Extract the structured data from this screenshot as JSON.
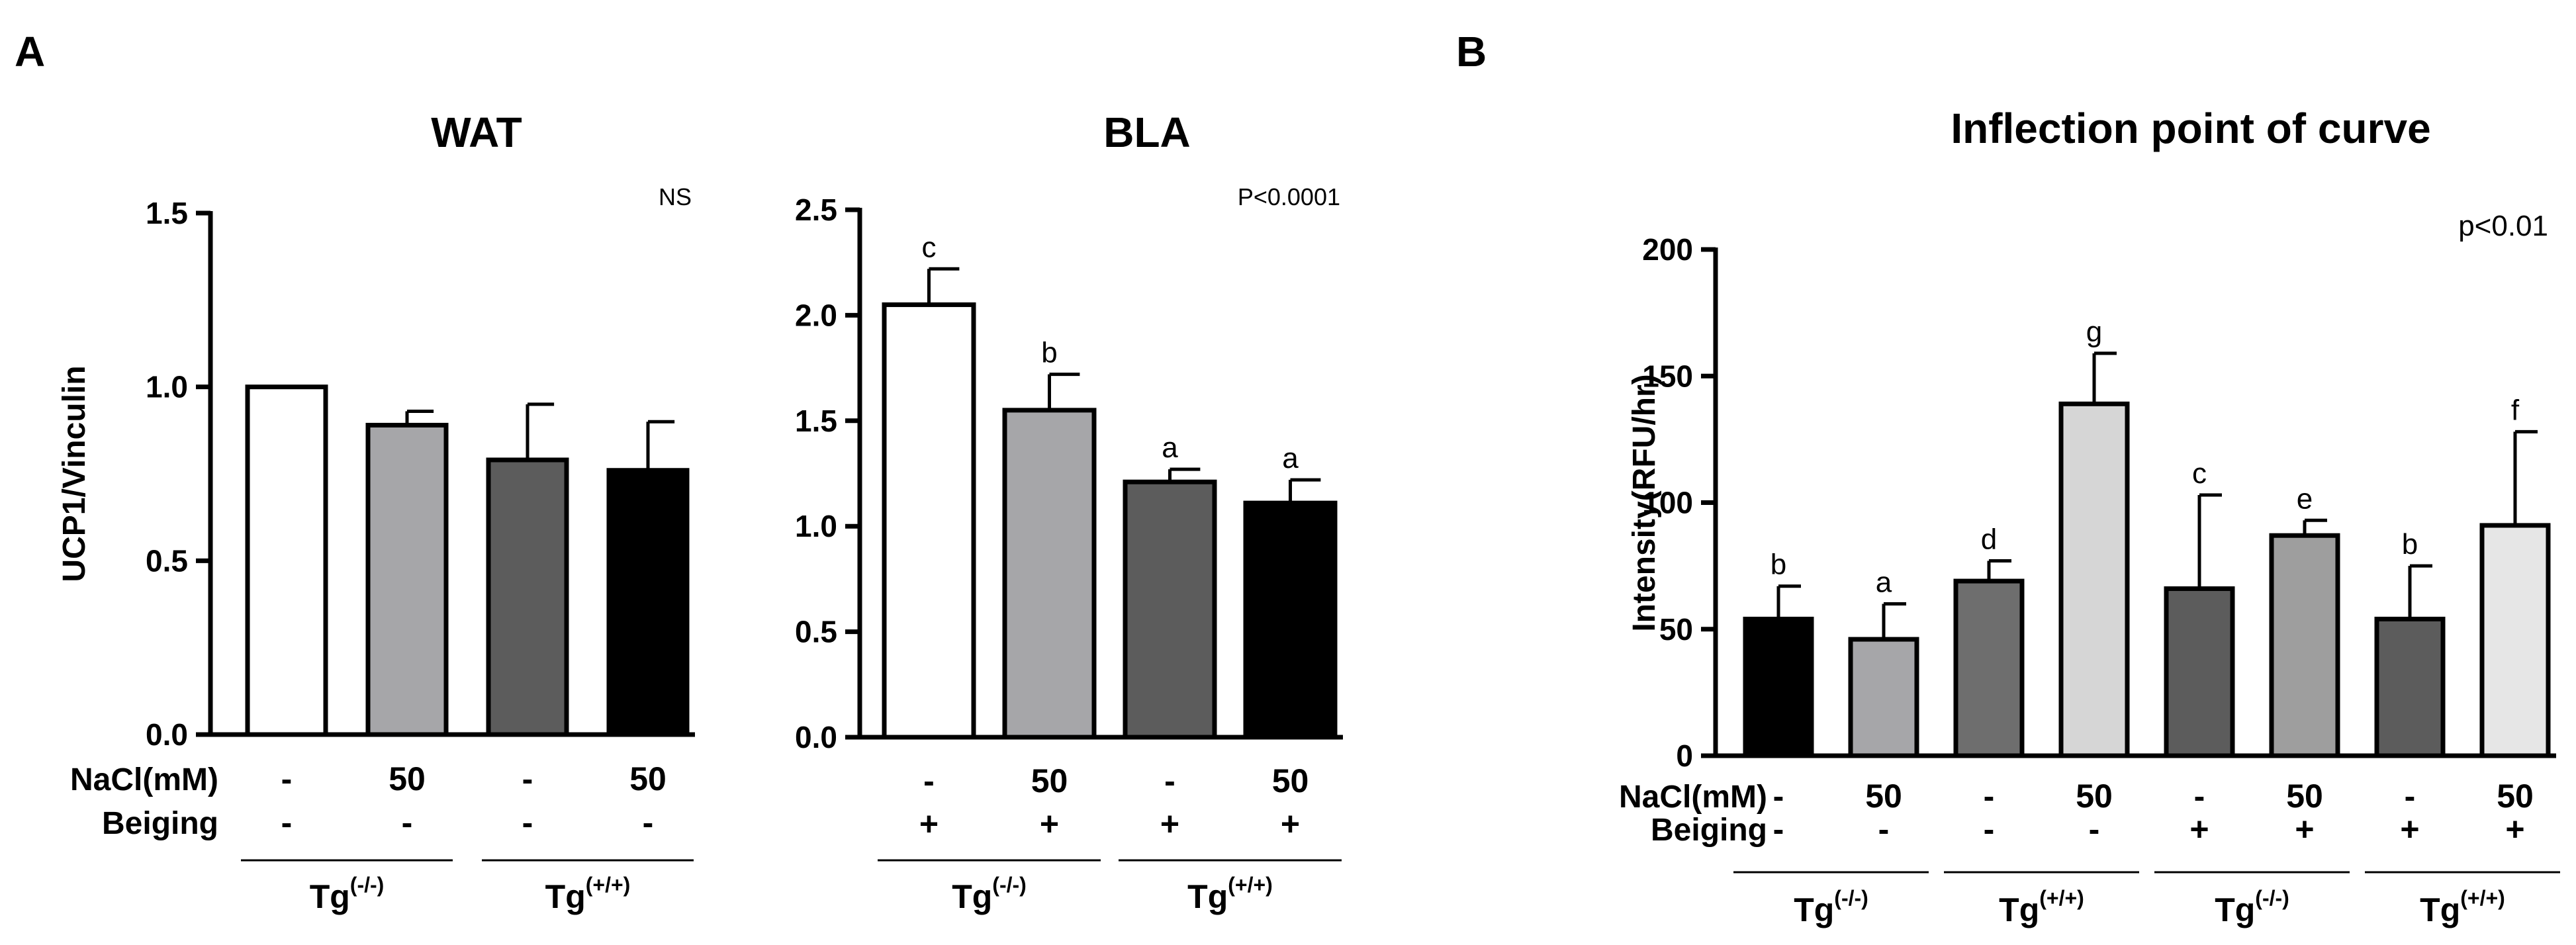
{
  "panels": [
    {
      "label": "A"
    },
    {
      "label": "B"
    }
  ],
  "chart_data": [
    {
      "type": "bar",
      "panel": "A",
      "title": "WAT",
      "ylabel": "UCP1/Vinculin",
      "xlabel": "",
      "ylim": [
        0,
        1.5
      ],
      "yticks": [
        "0.0",
        "0.5",
        "1.0",
        "1.5"
      ],
      "significance": "NS",
      "bar_colors": [
        "#ffffff",
        "#a6a6a9",
        "#5c5c5c",
        "#000000"
      ],
      "values": [
        1.0,
        0.89,
        0.79,
        0.76
      ],
      "errors": [
        0.0,
        0.04,
        0.16,
        0.14
      ],
      "letters": [
        "",
        "",
        "",
        ""
      ],
      "row_labels": [
        "NaCl(mM)",
        "Beiging"
      ],
      "rows": [
        [
          "-",
          "50",
          "-",
          "50"
        ],
        [
          "-",
          "-",
          "-",
          "-"
        ]
      ],
      "groups": [
        {
          "label": "Tg",
          "sup": "(-/-)",
          "span": [
            0,
            1
          ]
        },
        {
          "label": "Tg",
          "sup": "(+/+)",
          "span": [
            2,
            3
          ]
        }
      ]
    },
    {
      "type": "bar",
      "panel": "A",
      "title": "BLA",
      "ylabel": "",
      "xlabel": "",
      "ylim": [
        0,
        2.5
      ],
      "yticks": [
        "0.0",
        "0.5",
        "1.0",
        "1.5",
        "2.0",
        "2.5"
      ],
      "significance": "P<0.0001",
      "bar_colors": [
        "#ffffff",
        "#a6a6a9",
        "#5c5c5c",
        "#000000"
      ],
      "values": [
        2.05,
        1.55,
        1.21,
        1.11
      ],
      "errors": [
        0.17,
        0.17,
        0.06,
        0.11
      ],
      "letters": [
        "c",
        "b",
        "a",
        "a"
      ],
      "row_labels": [
        "",
        ""
      ],
      "rows": [
        [
          "-",
          "50",
          "-",
          "50"
        ],
        [
          "+",
          "+",
          "+",
          "+"
        ]
      ],
      "groups": [
        {
          "label": "Tg",
          "sup": "(-/-)",
          "span": [
            0,
            1
          ]
        },
        {
          "label": "Tg",
          "sup": "(+/+)",
          "span": [
            2,
            3
          ]
        }
      ]
    },
    {
      "type": "bar",
      "panel": "B",
      "title": "Inflection point of curve",
      "ylabel": "Intensity(RFU/hr)",
      "xlabel": "",
      "ylim": [
        0,
        200
      ],
      "yticks": [
        "0",
        "50",
        "100",
        "150",
        "200"
      ],
      "significance": "p<0.01",
      "bar_colors": [
        "#000000",
        "#a6a6a9",
        "#6e6e6e",
        "#d6d6d6",
        "#5c5c5c",
        "#9e9e9e",
        "#5c5c5c",
        "#e6e6e6"
      ],
      "values": [
        54,
        46,
        69,
        139,
        66,
        87,
        54,
        91
      ],
      "errors": [
        13,
        14,
        8,
        20,
        37,
        6,
        21,
        37
      ],
      "letters": [
        "b",
        "a",
        "d",
        "g",
        "c",
        "e",
        "b",
        "f"
      ],
      "row_labels": [
        "NaCl(mM)",
        "Beiging"
      ],
      "rows": [
        [
          "-",
          "50",
          "-",
          "50",
          "-",
          "50",
          "-",
          "50"
        ],
        [
          "-",
          "-",
          "-",
          "-",
          "+",
          "+",
          "+",
          "+"
        ]
      ],
      "groups": [
        {
          "label": "Tg",
          "sup": "(-/-)",
          "span": [
            0,
            1
          ]
        },
        {
          "label": "Tg",
          "sup": "(+/+)",
          "span": [
            2,
            3
          ]
        },
        {
          "label": "Tg",
          "sup": "(-/-)",
          "span": [
            4,
            5
          ]
        },
        {
          "label": "Tg",
          "sup": "(+/+)",
          "span": [
            6,
            7
          ]
        }
      ]
    }
  ]
}
